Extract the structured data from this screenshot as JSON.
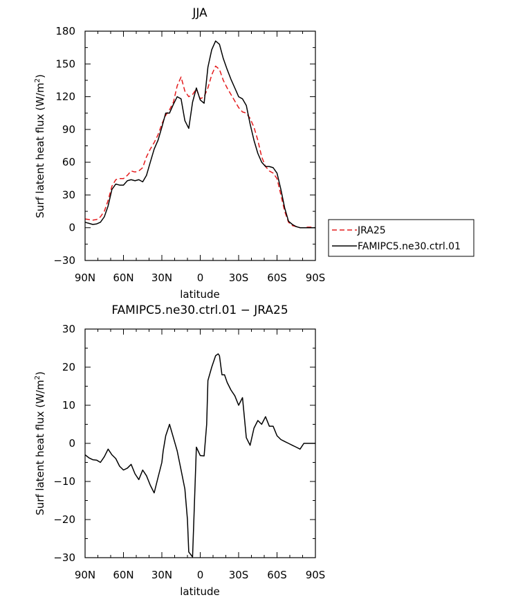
{
  "chart_data": [
    {
      "type": "line",
      "title": "JJA",
      "xlabel": "latitude",
      "ylabel_prefix": "Surf latent heat flux (W/m",
      "ylabel_sup": "2",
      "ylabel_suffix": ")",
      "xlim": [
        90,
        -90
      ],
      "ylim": [
        -30,
        180
      ],
      "xticks": [
        90,
        60,
        30,
        0,
        -30,
        -60,
        -90
      ],
      "xtick_labels": [
        "90N",
        "60N",
        "30N",
        "0",
        "30S",
        "60S",
        "90S"
      ],
      "yticks": [
        -30,
        0,
        30,
        60,
        90,
        120,
        150,
        180
      ],
      "ytick_labels": [
        "−30",
        "0",
        "30",
        "60",
        "90",
        "120",
        "150",
        "180"
      ],
      "legend": {
        "position": "right",
        "entries": [
          "JRA25",
          "FAMIPC5.ne30.ctrl.01"
        ]
      },
      "series": [
        {
          "name": "JRA25",
          "color": "#e41a1c",
          "dash": "dashed",
          "x": [
            90,
            87,
            84,
            81,
            78,
            75,
            72,
            69,
            66,
            63,
            60,
            57,
            54,
            51,
            48,
            45,
            42,
            39,
            36,
            33,
            30,
            27,
            24,
            21,
            18,
            15,
            12,
            9,
            6,
            3,
            0,
            -3,
            -6,
            -9,
            -12,
            -15,
            -18,
            -21,
            -24,
            -27,
            -30,
            -33,
            -36,
            -39,
            -42,
            -45,
            -48,
            -51,
            -54,
            -57,
            -60,
            -63,
            -66,
            -69,
            -72,
            -75,
            -78,
            -81,
            -84,
            -87,
            -90
          ],
          "values": [
            8,
            7.5,
            7,
            7.5,
            10,
            15,
            25,
            38,
            44,
            45,
            45,
            48,
            52,
            51,
            52,
            55,
            65,
            72,
            78,
            85,
            95,
            103,
            108,
            115,
            130,
            138,
            125,
            120,
            122,
            127,
            118,
            120,
            128,
            140,
            148,
            145,
            135,
            128,
            122,
            116,
            110,
            106,
            105,
            100,
            92,
            80,
            65,
            56,
            52,
            50,
            45,
            30,
            15,
            5,
            2,
            1,
            0,
            0,
            0.5,
            0.5,
            0
          ]
        },
        {
          "name": "FAMIPC5.ne30.ctrl.01",
          "color": "#000000",
          "dash": "solid",
          "x": [
            90,
            87,
            84,
            81,
            78,
            75,
            72,
            69,
            66,
            63,
            60,
            57,
            54,
            51,
            48,
            45,
            42,
            39,
            36,
            33,
            30,
            27,
            24,
            21,
            18,
            15,
            12,
            9,
            6,
            3,
            0,
            -3,
            -6,
            -9,
            -12,
            -15,
            -18,
            -21,
            -24,
            -27,
            -30,
            -33,
            -36,
            -39,
            -42,
            -45,
            -48,
            -51,
            -54,
            -57,
            -60,
            -63,
            -66,
            -69,
            -72,
            -75,
            -78,
            -81,
            -84,
            -87,
            -90
          ],
          "values": [
            5,
            4,
            3,
            3.5,
            5,
            10,
            20,
            35,
            40,
            39,
            39,
            43,
            44,
            43,
            44,
            42,
            48,
            60,
            72,
            80,
            92,
            105,
            105,
            113,
            120,
            118,
            98,
            91,
            115,
            128,
            117,
            114,
            147,
            163,
            171,
            168,
            155,
            145,
            136,
            128,
            120,
            118,
            112,
            95,
            80,
            68,
            60,
            56,
            56,
            55,
            50,
            35,
            18,
            6,
            3,
            1,
            0,
            0,
            0,
            0,
            0
          ]
        }
      ]
    },
    {
      "type": "line",
      "title": "FAMIPC5.ne30.ctrl.01 − JRA25",
      "xlabel": "latitude",
      "ylabel_prefix": "Surf latent heat flux (W/m",
      "ylabel_sup": "2",
      "ylabel_suffix": ")",
      "xlim": [
        90,
        -90
      ],
      "ylim": [
        -30,
        30
      ],
      "xticks": [
        90,
        60,
        30,
        0,
        -30,
        -60,
        -90
      ],
      "xtick_labels": [
        "90N",
        "60N",
        "30N",
        "0",
        "30S",
        "60S",
        "90S"
      ],
      "yticks": [
        -30,
        -20,
        -10,
        0,
        10,
        20,
        30
      ],
      "ytick_labels": [
        "−30",
        "−20",
        "−10",
        "0",
        "10",
        "20",
        "30"
      ],
      "series": [
        {
          "name": "FAMIPC5.ne30.ctrl.01 - JRA25",
          "color": "#000000",
          "dash": "solid",
          "x": [
            90,
            87,
            84,
            81,
            78,
            75,
            72,
            69,
            66,
            63,
            60,
            57,
            54,
            51,
            48,
            45,
            42,
            39,
            36,
            33,
            30,
            29,
            27,
            25,
            24,
            21,
            18,
            15,
            12,
            10,
            9,
            6,
            5,
            3,
            0,
            -3,
            -5,
            -6,
            -9,
            -12,
            -14,
            -15,
            -17,
            -19,
            -21,
            -24,
            -27,
            -30,
            -33,
            -36,
            -39,
            -42,
            -45,
            -48,
            -51,
            -54,
            -57,
            -60,
            -63,
            -66,
            -69,
            -72,
            -75,
            -78,
            -81,
            -84,
            -87,
            -90
          ],
          "values": [
            -3,
            -3.8,
            -4.3,
            -4.4,
            -5,
            -3.5,
            -1.5,
            -3,
            -4,
            -6,
            -7,
            -6.5,
            -5.5,
            -8,
            -9.5,
            -7,
            -8.5,
            -11,
            -13,
            -9,
            -5,
            -2,
            2,
            4,
            5,
            1.5,
            -2,
            -7,
            -12,
            -20,
            -28.5,
            -29.8,
            -20,
            -1,
            -3.2,
            -3.3,
            5,
            16.5,
            20,
            23,
            23.5,
            23,
            18,
            18,
            16,
            14,
            12.5,
            10,
            12,
            1.5,
            -0.5,
            4,
            6,
            5,
            7,
            4.5,
            4.5,
            2,
            1,
            0.5,
            0,
            -0.5,
            -1,
            -1.5,
            0,
            0,
            0,
            0
          ]
        }
      ]
    }
  ]
}
